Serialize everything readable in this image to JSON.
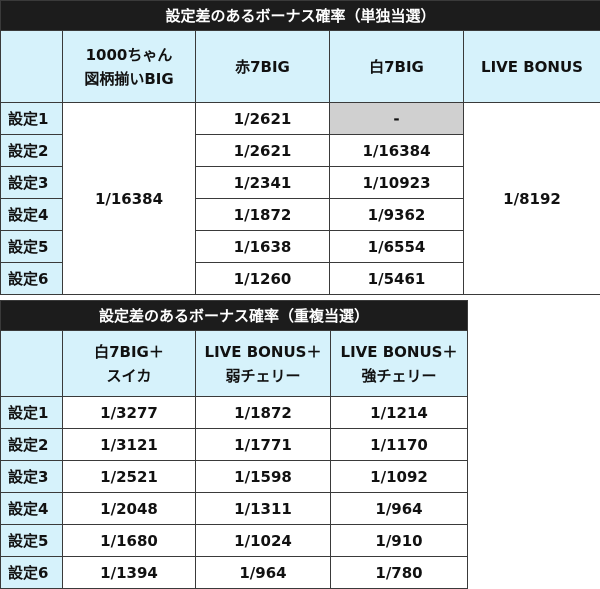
{
  "table1": {
    "title": "設定差のあるボーナス確率（単独当選）",
    "headers": {
      "col1": "1000ちゃん\n図柄揃いBIG",
      "col2": "赤7BIG",
      "col3": "白7BIG",
      "col4": "LIVE BONUS"
    },
    "row_labels": [
      "設定1",
      "設定2",
      "設定3",
      "設定4",
      "設定5",
      "設定6"
    ],
    "col1_merged": "1/16384",
    "col2": [
      "1/2621",
      "1/2621",
      "1/2341",
      "1/1872",
      "1/1638",
      "1/1260"
    ],
    "col3": [
      "-",
      "1/16384",
      "1/10923",
      "1/9362",
      "1/6554",
      "1/5461"
    ],
    "col4_merged": "1/8192"
  },
  "table2": {
    "title": "設定差のあるボーナス確率（重複当選）",
    "headers": {
      "col1": "白7BIG＋\nスイカ",
      "col2": "LIVE BONUS＋\n弱チェリー",
      "col3": "LIVE BONUS＋\n強チェリー"
    },
    "row_labels": [
      "設定1",
      "設定2",
      "設定3",
      "設定4",
      "設定5",
      "設定6"
    ],
    "col1": [
      "1/3277",
      "1/3121",
      "1/2521",
      "1/2048",
      "1/1680",
      "1/1394"
    ],
    "col2": [
      "1/1872",
      "1/1771",
      "1/1598",
      "1/1311",
      "1/1024",
      "1/964"
    ],
    "col3": [
      "1/1214",
      "1/1170",
      "1/1092",
      "1/964",
      "1/910",
      "1/780"
    ]
  }
}
